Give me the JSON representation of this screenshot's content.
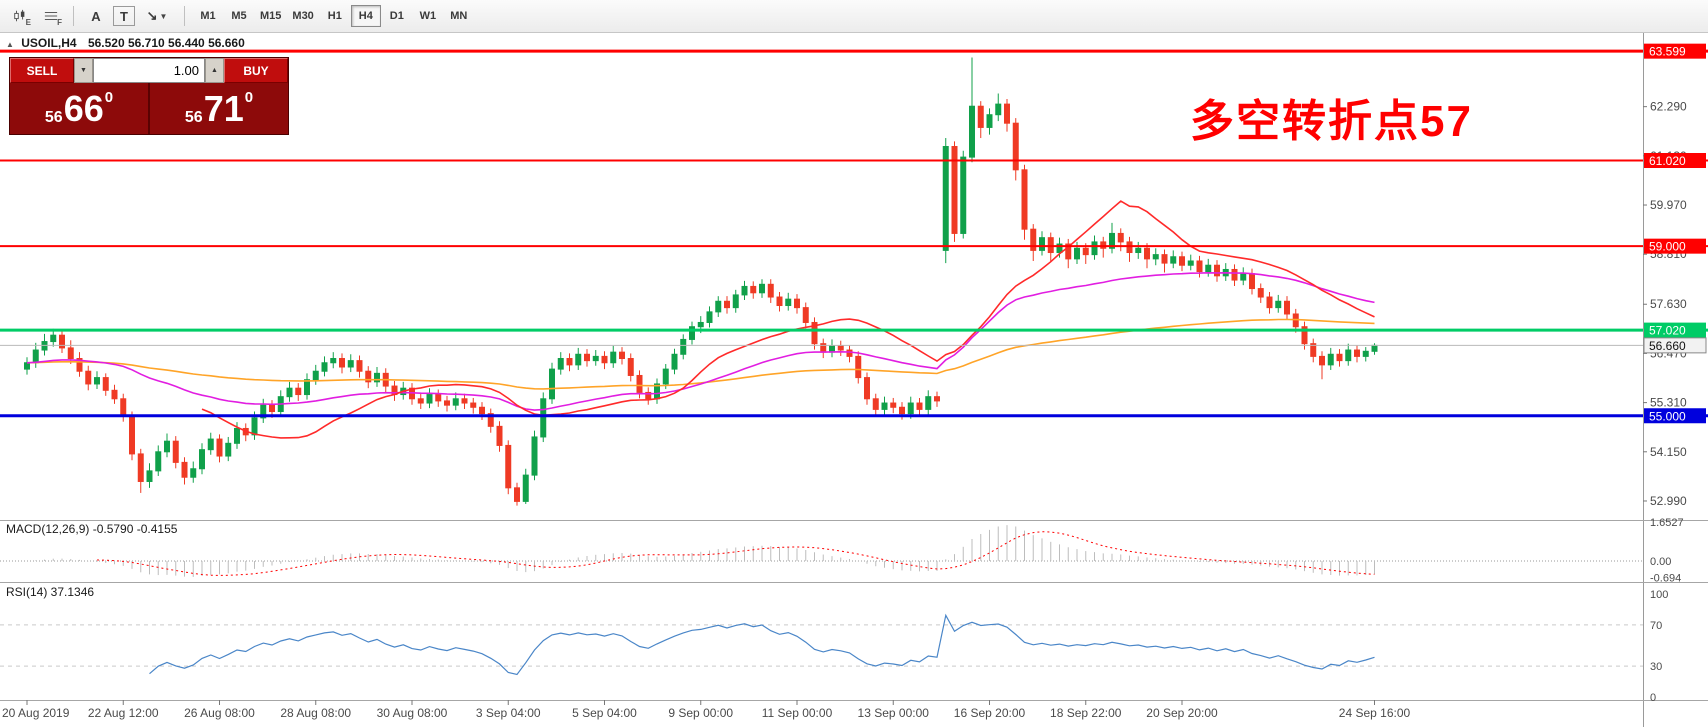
{
  "toolbar": {
    "icons": [
      {
        "name": "candles-tool",
        "sub": "E"
      },
      {
        "name": "levels-tool",
        "sub": "F"
      },
      {
        "name": "text-tool",
        "glyph": "A"
      },
      {
        "name": "textbox-tool",
        "glyph": "T"
      },
      {
        "name": "arrows-tool",
        "glyph": "↘"
      }
    ],
    "timeframes": [
      "M1",
      "M5",
      "M15",
      "M30",
      "H1",
      "H4",
      "D1",
      "W1",
      "MN"
    ],
    "active_timeframe": "H4"
  },
  "symbol_bar": {
    "toggle_icon": "▲",
    "symbol": "USOIL,H4",
    "ohlc": "56.520 56.710 56.440 56.660"
  },
  "trade_panel": {
    "sell_label": "SELL",
    "buy_label": "BUY",
    "volume": "1.00",
    "volume_down_icon": "▼",
    "volume_up_icon": "▲",
    "sell_price": {
      "prefix": "56",
      "big": "66",
      "sup": "0"
    },
    "buy_price": {
      "prefix": "56",
      "big": "71",
      "sup": "0"
    }
  },
  "annotation": {
    "text": "多空转折点57",
    "color": "#ff0000"
  },
  "chart_data": {
    "type": "candlestick",
    "symbol": "USOIL",
    "timeframe": "H4",
    "title": "USOIL,H4 56.520 56.710 56.440 56.660",
    "price_range": {
      "min": 52.73,
      "max": 63.98
    },
    "colors": {
      "up": "#10a04a",
      "down": "#ef3a24",
      "background": "#ffffff"
    },
    "price_axis_ticks": [
      "62.290",
      "61.130",
      "59.970",
      "58.810",
      "57.630",
      "56.470",
      "55.310",
      "54.150",
      "52.990"
    ],
    "hlines": [
      {
        "price": 63.599,
        "label": "63.599",
        "color": "#ff0000",
        "thickness": 3
      },
      {
        "price": 61.02,
        "label": "61.020",
        "color": "#ff0000",
        "thickness": 2
      },
      {
        "price": 59.0,
        "label": "59.000",
        "color": "#ff0000",
        "thickness": 2
      },
      {
        "price": 57.02,
        "label": "57.020",
        "color": "#00cc66",
        "thickness": 3
      },
      {
        "price": 55.0,
        "label": "55.000",
        "color": "#0000dd",
        "thickness": 3
      }
    ],
    "current_price": {
      "value": 56.66,
      "label": "56.660"
    },
    "moving_averages": [
      {
        "type": "ema",
        "period": 150,
        "color": "#ffa428"
      },
      {
        "type": "ema",
        "period": 50,
        "color": "#e11ee1"
      },
      {
        "type": "sma",
        "period": 21,
        "color": "#ff2a2a"
      }
    ],
    "time_labels": [
      {
        "label": "20 Aug 2019",
        "index": 0
      },
      {
        "label": "22 Aug 12:00",
        "index": 11
      },
      {
        "label": "26 Aug 08:00",
        "index": 22
      },
      {
        "label": "28 Aug 08:00",
        "index": 33
      },
      {
        "label": "30 Aug 08:00",
        "index": 44
      },
      {
        "label": "3 Sep 04:00",
        "index": 55
      },
      {
        "label": "5 Sep 04:00",
        "index": 66
      },
      {
        "label": "9 Sep 00:00",
        "index": 77
      },
      {
        "label": "11 Sep 00:00",
        "index": 88
      },
      {
        "label": "13 Sep 00:00",
        "index": 99
      },
      {
        "label": "16 Sep 20:00",
        "index": 110
      },
      {
        "label": "18 Sep 22:00",
        "index": 121
      },
      {
        "label": "20 Sep 20:00",
        "index": 132
      },
      {
        "label": "24 Sep 16:00",
        "index": 154
      }
    ],
    "indicators": {
      "macd": {
        "label": "MACD(12,26,9) -0.5790 -0.4155",
        "params": [
          12,
          26,
          9
        ],
        "histogram_color": "#bdbdbd",
        "signal_color": "#ff0000",
        "axis_labels": [
          {
            "text": "1.6527",
            "value": 1.6527
          },
          {
            "text": "0.00",
            "value": 0
          },
          {
            "text": "-0.694",
            "value": -0.694
          }
        ]
      },
      "rsi": {
        "label": "RSI(14) 37.1346",
        "period": 14,
        "color": "#4a86c8",
        "levels": [
          70,
          30
        ],
        "axis_labels": [
          {
            "text": "100",
            "value": 100
          },
          {
            "text": "70",
            "value": 70
          },
          {
            "text": "30",
            "value": 30
          },
          {
            "text": "0",
            "value": 0
          }
        ]
      }
    },
    "candles": [
      [
        56.1,
        56.38,
        55.97,
        56.25
      ],
      [
        56.25,
        56.72,
        56.13,
        56.55
      ],
      [
        56.55,
        56.93,
        56.42,
        56.75
      ],
      [
        56.75,
        57.05,
        56.63,
        56.9
      ],
      [
        56.9,
        57.0,
        56.48,
        56.6
      ],
      [
        56.6,
        56.78,
        56.22,
        56.35
      ],
      [
        56.35,
        56.5,
        55.92,
        56.05
      ],
      [
        56.05,
        56.18,
        55.6,
        55.75
      ],
      [
        55.75,
        56.05,
        55.63,
        55.9
      ],
      [
        55.9,
        56.0,
        55.47,
        55.6
      ],
      [
        55.6,
        55.73,
        55.28,
        55.4
      ],
      [
        55.4,
        55.52,
        54.86,
        55.0
      ],
      [
        55.0,
        55.1,
        53.95,
        54.1
      ],
      [
        54.1,
        54.22,
        53.18,
        53.45
      ],
      [
        53.45,
        53.88,
        53.3,
        53.7
      ],
      [
        53.7,
        54.3,
        53.58,
        54.15
      ],
      [
        54.15,
        54.58,
        54.02,
        54.4
      ],
      [
        54.4,
        54.52,
        53.76,
        53.9
      ],
      [
        53.9,
        54.02,
        53.38,
        53.55
      ],
      [
        53.55,
        53.92,
        53.42,
        53.75
      ],
      [
        53.75,
        54.35,
        53.62,
        54.2
      ],
      [
        54.2,
        54.6,
        54.08,
        54.45
      ],
      [
        54.45,
        54.56,
        53.9,
        54.05
      ],
      [
        54.05,
        54.5,
        53.93,
        54.35
      ],
      [
        54.35,
        54.85,
        54.22,
        54.7
      ],
      [
        54.7,
        54.82,
        54.4,
        54.55
      ],
      [
        54.55,
        55.1,
        54.43,
        54.95
      ],
      [
        54.95,
        55.4,
        54.83,
        55.25
      ],
      [
        55.25,
        55.37,
        54.95,
        55.1
      ],
      [
        55.1,
        55.6,
        54.98,
        55.45
      ],
      [
        55.45,
        55.8,
        55.33,
        55.65
      ],
      [
        55.65,
        55.77,
        55.35,
        55.5
      ],
      [
        55.5,
        56.0,
        55.38,
        55.85
      ],
      [
        55.85,
        56.2,
        55.73,
        56.05
      ],
      [
        56.05,
        56.4,
        55.93,
        56.25
      ],
      [
        56.25,
        56.5,
        56.12,
        56.35
      ],
      [
        56.35,
        56.47,
        56.0,
        56.15
      ],
      [
        56.15,
        56.45,
        56.03,
        56.3
      ],
      [
        56.3,
        56.42,
        55.9,
        56.05
      ],
      [
        56.05,
        56.17,
        55.65,
        55.8
      ],
      [
        55.8,
        56.15,
        55.68,
        56.0
      ],
      [
        56.0,
        56.12,
        55.55,
        55.7
      ],
      [
        55.7,
        55.82,
        55.35,
        55.5
      ],
      [
        55.5,
        55.8,
        55.38,
        55.65
      ],
      [
        55.65,
        55.77,
        55.26,
        55.4
      ],
      [
        55.4,
        55.52,
        55.16,
        55.3
      ],
      [
        55.3,
        55.65,
        55.18,
        55.5
      ],
      [
        55.5,
        55.62,
        55.21,
        55.35
      ],
      [
        55.35,
        55.47,
        55.1,
        55.25
      ],
      [
        55.25,
        55.55,
        55.13,
        55.4
      ],
      [
        55.4,
        55.52,
        55.16,
        55.3
      ],
      [
        55.3,
        55.42,
        55.05,
        55.2
      ],
      [
        55.2,
        55.32,
        54.9,
        55.05
      ],
      [
        55.05,
        55.17,
        54.6,
        54.75
      ],
      [
        54.75,
        54.87,
        54.15,
        54.3
      ],
      [
        54.3,
        54.42,
        53.15,
        53.3
      ],
      [
        53.3,
        53.42,
        52.88,
        52.98
      ],
      [
        52.98,
        53.75,
        52.92,
        53.6
      ],
      [
        53.6,
        54.65,
        53.48,
        54.5
      ],
      [
        54.5,
        55.55,
        54.38,
        55.4
      ],
      [
        55.4,
        56.25,
        55.28,
        56.1
      ],
      [
        56.1,
        56.5,
        55.97,
        56.35
      ],
      [
        56.35,
        56.47,
        56.05,
        56.2
      ],
      [
        56.2,
        56.6,
        56.08,
        56.45
      ],
      [
        56.45,
        56.57,
        56.16,
        56.3
      ],
      [
        56.3,
        56.55,
        56.18,
        56.4
      ],
      [
        56.4,
        56.52,
        56.1,
        56.25
      ],
      [
        56.25,
        56.65,
        56.13,
        56.5
      ],
      [
        56.5,
        56.62,
        56.21,
        56.35
      ],
      [
        56.35,
        56.47,
        55.81,
        55.95
      ],
      [
        55.95,
        56.07,
        55.41,
        55.55
      ],
      [
        55.55,
        55.67,
        55.26,
        55.4
      ],
      [
        55.4,
        55.88,
        55.28,
        55.75
      ],
      [
        55.75,
        56.22,
        55.63,
        56.1
      ],
      [
        56.1,
        56.58,
        55.98,
        56.45
      ],
      [
        56.45,
        56.92,
        56.33,
        56.8
      ],
      [
        56.8,
        57.22,
        56.68,
        57.1
      ],
      [
        57.1,
        57.35,
        56.95,
        57.2
      ],
      [
        57.2,
        57.58,
        57.08,
        57.45
      ],
      [
        57.45,
        57.82,
        57.33,
        57.7
      ],
      [
        57.7,
        57.82,
        57.41,
        57.55
      ],
      [
        57.55,
        57.97,
        57.43,
        57.85
      ],
      [
        57.85,
        58.18,
        57.73,
        58.05
      ],
      [
        58.05,
        58.17,
        57.76,
        57.9
      ],
      [
        57.9,
        58.22,
        57.78,
        58.1
      ],
      [
        58.1,
        58.22,
        57.66,
        57.8
      ],
      [
        57.8,
        57.92,
        57.46,
        57.6
      ],
      [
        57.6,
        57.9,
        57.48,
        57.75
      ],
      [
        57.75,
        57.87,
        57.41,
        57.55
      ],
      [
        57.55,
        57.67,
        57.06,
        57.2
      ],
      [
        57.2,
        57.32,
        56.56,
        56.7
      ],
      [
        56.7,
        56.82,
        56.36,
        56.5
      ],
      [
        56.5,
        56.8,
        56.38,
        56.65
      ],
      [
        56.65,
        56.77,
        56.41,
        56.55
      ],
      [
        56.55,
        56.67,
        56.26,
        56.4
      ],
      [
        56.4,
        56.52,
        55.76,
        55.9
      ],
      [
        55.9,
        56.02,
        55.26,
        55.4
      ],
      [
        55.4,
        55.52,
        55.01,
        55.15
      ],
      [
        55.15,
        55.45,
        55.03,
        55.3
      ],
      [
        55.3,
        55.42,
        55.06,
        55.2
      ],
      [
        55.2,
        55.32,
        54.91,
        55.05
      ],
      [
        55.05,
        55.45,
        54.93,
        55.3
      ],
      [
        55.3,
        55.42,
        55.01,
        55.15
      ],
      [
        55.15,
        55.6,
        55.03,
        55.45
      ],
      [
        55.45,
        55.57,
        55.21,
        55.35
      ],
      [
        58.9,
        61.55,
        58.6,
        61.35
      ],
      [
        61.35,
        61.47,
        59.1,
        59.3
      ],
      [
        59.3,
        61.25,
        59.18,
        61.1
      ],
      [
        61.1,
        63.45,
        60.98,
        62.3
      ],
      [
        62.3,
        62.42,
        61.55,
        61.8
      ],
      [
        61.8,
        62.25,
        61.63,
        62.1
      ],
      [
        62.1,
        62.6,
        61.95,
        62.35
      ],
      [
        62.35,
        62.47,
        61.7,
        61.9
      ],
      [
        61.9,
        62.02,
        60.55,
        60.8
      ],
      [
        60.8,
        60.92,
        59.15,
        59.4
      ],
      [
        59.4,
        59.52,
        58.65,
        58.9
      ],
      [
        58.9,
        59.35,
        58.78,
        59.2
      ],
      [
        59.2,
        59.32,
        58.63,
        58.85
      ],
      [
        58.85,
        59.2,
        58.73,
        59.05
      ],
      [
        59.05,
        59.17,
        58.48,
        58.7
      ],
      [
        58.7,
        59.1,
        58.58,
        58.95
      ],
      [
        58.95,
        59.07,
        58.58,
        58.8
      ],
      [
        58.8,
        59.25,
        58.68,
        59.1
      ],
      [
        59.1,
        59.22,
        58.73,
        58.95
      ],
      [
        58.95,
        59.55,
        58.83,
        59.3
      ],
      [
        59.3,
        59.42,
        58.88,
        59.1
      ],
      [
        59.1,
        59.22,
        58.63,
        58.85
      ],
      [
        58.85,
        59.1,
        58.7,
        58.95
      ],
      [
        58.95,
        59.07,
        58.48,
        58.7
      ],
      [
        58.7,
        58.95,
        58.55,
        58.8
      ],
      [
        58.8,
        58.92,
        58.38,
        58.6
      ],
      [
        58.6,
        58.9,
        58.48,
        58.75
      ],
      [
        58.75,
        58.87,
        58.41,
        58.55
      ],
      [
        58.55,
        58.8,
        58.43,
        58.65
      ],
      [
        58.65,
        58.77,
        58.26,
        58.4
      ],
      [
        58.4,
        58.7,
        58.28,
        58.55
      ],
      [
        58.55,
        58.67,
        58.16,
        58.3
      ],
      [
        58.3,
        58.6,
        58.18,
        58.45
      ],
      [
        58.45,
        58.57,
        58.06,
        58.2
      ],
      [
        58.2,
        58.5,
        58.08,
        58.35
      ],
      [
        58.35,
        58.47,
        57.86,
        58.0
      ],
      [
        58.0,
        58.12,
        57.66,
        57.8
      ],
      [
        57.8,
        57.92,
        57.41,
        57.55
      ],
      [
        57.55,
        57.85,
        57.43,
        57.7
      ],
      [
        57.7,
        57.82,
        57.26,
        57.4
      ],
      [
        57.4,
        57.52,
        56.96,
        57.1
      ],
      [
        57.1,
        57.22,
        56.56,
        56.7
      ],
      [
        56.7,
        56.82,
        56.26,
        56.4
      ],
      [
        56.4,
        56.52,
        55.86,
        56.2
      ],
      [
        56.2,
        56.6,
        56.08,
        56.45
      ],
      [
        56.45,
        56.57,
        56.16,
        56.3
      ],
      [
        56.3,
        56.7,
        56.18,
        56.55
      ],
      [
        56.55,
        56.67,
        56.26,
        56.4
      ],
      [
        56.4,
        56.62,
        56.28,
        56.52
      ],
      [
        56.52,
        56.71,
        56.44,
        56.66
      ]
    ]
  }
}
